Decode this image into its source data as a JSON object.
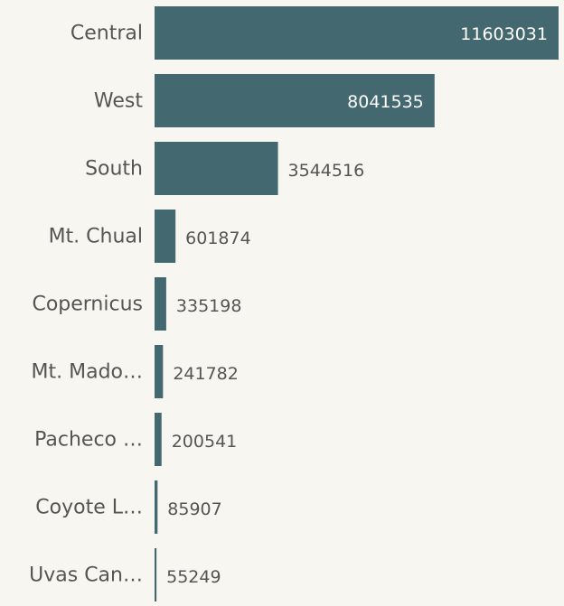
{
  "chart_data": {
    "type": "bar",
    "orientation": "horizontal",
    "categories": [
      "Central",
      "West",
      "South",
      "Mt. Chual",
      "Copernicus",
      "Mt. Mado…",
      "Pacheco …",
      "Coyote L…",
      "Uvas Can…"
    ],
    "values": [
      11603031,
      8041535,
      3544516,
      601874,
      335198,
      241782,
      200541,
      85907,
      55249
    ],
    "color": "#44686f"
  }
}
